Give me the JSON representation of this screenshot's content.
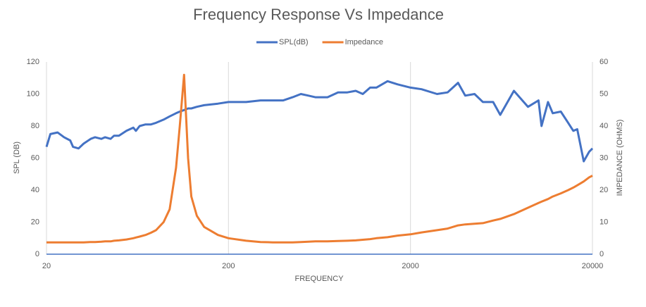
{
  "chart_data": {
    "type": "line",
    "title": "Frequency Response Vs Impedance",
    "xlabel": "FREQUENCY",
    "ylabel": "SPL (DB)",
    "y2label": "IMPEDANCE (OHMS)",
    "xscale": "log",
    "x": [
      20,
      21,
      23,
      25,
      27,
      28,
      30,
      32,
      35,
      37,
      40,
      42,
      45,
      47,
      50,
      55,
      60,
      62,
      65,
      70,
      75,
      80,
      88,
      95,
      103,
      108,
      114,
      120,
      125,
      134,
      147,
      175,
      200,
      250,
      300,
      350,
      400,
      450,
      500,
      550,
      600,
      700,
      800,
      900,
      1000,
      1094,
      1200,
      1300,
      1496,
      1700,
      2000,
      2300,
      2800,
      3200,
      3650,
      4000,
      4500,
      5000,
      5690,
      6230,
      7400,
      8850,
      10100,
      10500,
      11400,
      12100,
      13400,
      14700,
      15700,
      16500,
      17900,
      19200,
      20000
    ],
    "series": [
      {
        "name": "SPL(dB)",
        "color": "#4472c4",
        "axis": "y",
        "values": [
          67,
          75,
          76,
          73,
          71,
          67,
          66,
          69,
          72,
          73,
          72,
          73,
          72,
          74,
          74,
          77,
          79,
          77,
          80,
          81,
          81,
          82,
          84,
          86,
          88,
          89,
          90,
          91,
          91,
          92,
          93,
          94,
          95,
          95,
          96,
          96,
          96,
          98,
          100,
          99,
          98,
          98,
          101,
          101,
          102,
          100,
          104,
          104,
          108,
          106,
          104,
          103,
          100,
          101,
          107,
          99,
          100,
          95,
          95,
          87,
          102,
          92,
          96,
          80,
          95,
          88,
          89,
          82,
          77,
          78,
          58,
          64,
          66
        ]
      },
      {
        "name": "Impedance",
        "color": "#ed7d31",
        "axis": "y2",
        "values": [
          3.7,
          3.7,
          3.7,
          3.7,
          3.7,
          3.7,
          3.7,
          3.7,
          3.8,
          3.8,
          3.9,
          4,
          4,
          4.2,
          4.3,
          4.6,
          5,
          5.2,
          5.5,
          6,
          6.7,
          7.5,
          10,
          14,
          27,
          40,
          56,
          30,
          18,
          12,
          8.5,
          6,
          5,
          4.2,
          3.8,
          3.7,
          3.7,
          3.7,
          3.8,
          3.9,
          4,
          4,
          4.1,
          4.2,
          4.3,
          4.5,
          4.7,
          5,
          5.3,
          5.8,
          6.2,
          6.8,
          7.5,
          8,
          9,
          9.3,
          9.5,
          9.7,
          10.5,
          11,
          12.5,
          14.5,
          16,
          16.4,
          17.2,
          18,
          19,
          20,
          20.8,
          21.5,
          22.7,
          24,
          24.5
        ]
      }
    ],
    "xlim": [
      20,
      20000
    ],
    "xticks": [
      20,
      200,
      2000,
      20000
    ],
    "ylim": [
      0,
      120
    ],
    "yticks": [
      0,
      20,
      40,
      60,
      80,
      100,
      120
    ],
    "y2lim": [
      0,
      60
    ],
    "y2ticks": [
      0,
      10,
      20,
      30,
      40,
      50,
      60
    ],
    "grid": true,
    "legend": "top"
  }
}
